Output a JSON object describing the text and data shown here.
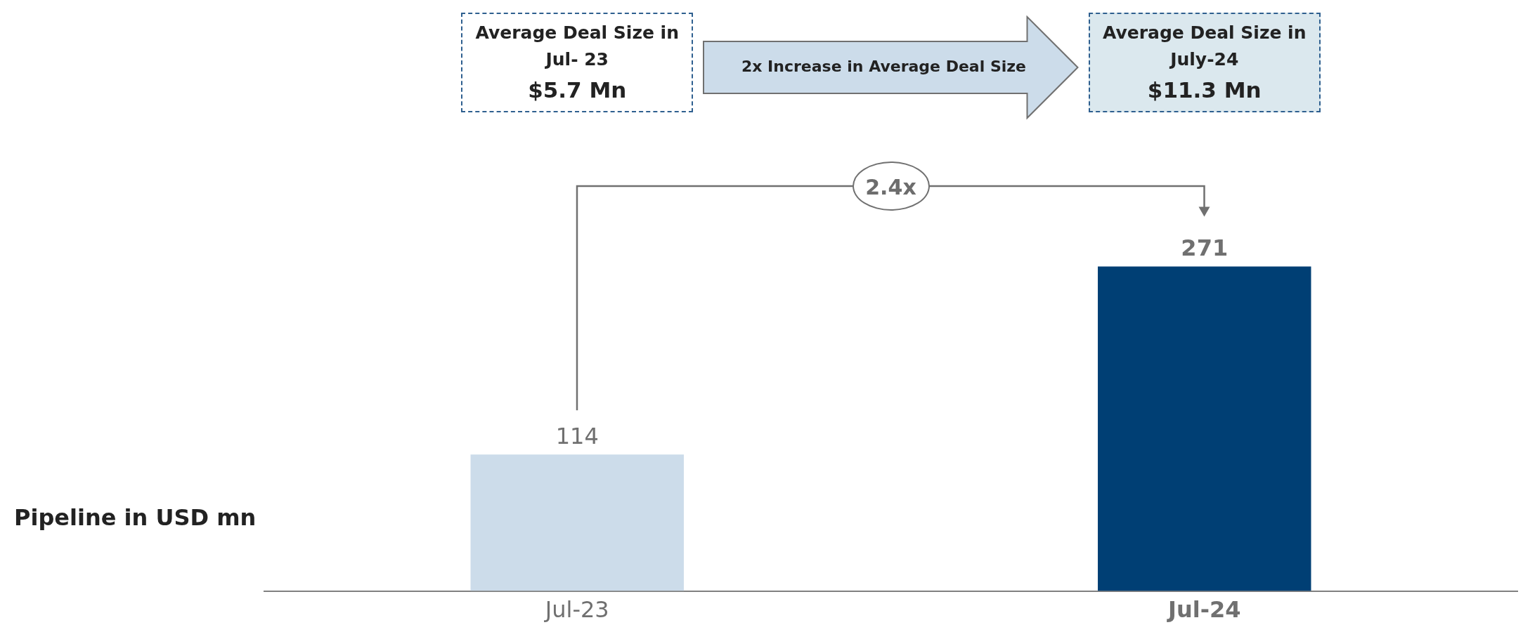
{
  "chart_data": {
    "type": "bar",
    "ylabel": "Pipeline in USD mn",
    "categories": [
      "Jul-23",
      "Jul-24"
    ],
    "values": [
      114,
      271
    ],
    "colors": [
      "#ccdcea",
      "#003f74"
    ],
    "data_labels": true,
    "legend": false,
    "grid": false,
    "tick_labels": "x",
    "annotations": [
      "Average Deal Size in Jul- 23",
      "$5.7 Mn",
      "2x Increase in Average Deal Size",
      "Average Deal Size in July-24",
      "$11.3 Mn",
      "2.4x"
    ]
  }
}
